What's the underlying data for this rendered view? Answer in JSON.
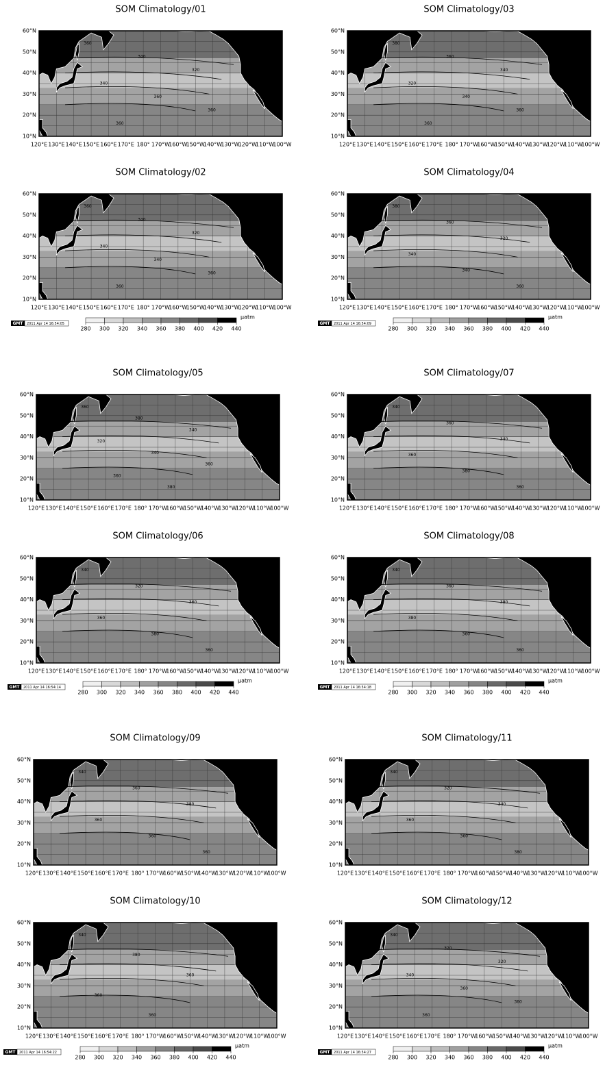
{
  "panels": [
    {
      "title": "SOM Climatology/01",
      "contour_labels": [
        360,
        340,
        320,
        340,
        360,
        360,
        360
      ]
    },
    {
      "title": "SOM Climatology/03",
      "contour_labels": [
        380,
        360,
        340,
        320,
        340,
        360,
        360
      ]
    },
    {
      "title": "SOM Climatology/02",
      "contour_labels": [
        360,
        340,
        320,
        340,
        340,
        360,
        360
      ]
    },
    {
      "title": "SOM Climatology/04",
      "contour_labels": [
        380,
        360,
        320,
        340,
        340,
        360
      ]
    },
    {
      "title": "SOM Climatology/05",
      "contour_labels": [
        360,
        380,
        340,
        320,
        340,
        360,
        360,
        380
      ]
    },
    {
      "title": "SOM Climatology/07",
      "contour_labels": [
        340,
        360,
        340,
        360,
        380,
        360
      ]
    },
    {
      "title": "SOM Climatology/06",
      "contour_labels": [
        340,
        320,
        360,
        360,
        380,
        360
      ]
    },
    {
      "title": "SOM Climatology/08",
      "contour_labels": [
        340,
        360,
        380,
        380,
        360,
        360
      ]
    },
    {
      "title": "SOM Climatology/09",
      "contour_labels": [
        340,
        360,
        380,
        360,
        360,
        360
      ]
    },
    {
      "title": "SOM Climatology/11",
      "contour_labels": [
        340,
        320,
        340,
        360,
        360,
        380
      ]
    },
    {
      "title": "SOM Climatology/10",
      "contour_labels": [
        340,
        380,
        360,
        360,
        360
      ]
    },
    {
      "title": "SOM Climatology/12",
      "contour_labels": [
        340,
        320,
        320,
        340,
        360,
        360,
        360
      ]
    }
  ],
  "lat_ticks": [
    {
      "value": 10,
      "label": "10°N"
    },
    {
      "value": 20,
      "label": "20°N"
    },
    {
      "value": 30,
      "label": "30°N"
    },
    {
      "value": 40,
      "label": "40°N"
    },
    {
      "value": 50,
      "label": "50°N"
    },
    {
      "value": 60,
      "label": "60°N"
    }
  ],
  "lon_ticks": [
    {
      "value": 120,
      "label": "120°E"
    },
    {
      "value": 130,
      "label": "130°E"
    },
    {
      "value": 140,
      "label": "140°E"
    },
    {
      "value": 150,
      "label": "150°E"
    },
    {
      "value": 160,
      "label": "160°E"
    },
    {
      "value": 170,
      "label": "170°E"
    },
    {
      "value": 180,
      "label": "180°"
    },
    {
      "value": 190,
      "label": "170°W"
    },
    {
      "value": 200,
      "label": "160°W"
    },
    {
      "value": 210,
      "label": "150°W"
    },
    {
      "value": 220,
      "label": "140°W"
    },
    {
      "value": 230,
      "label": "130°W"
    },
    {
      "value": 240,
      "label": "120°W"
    },
    {
      "value": 250,
      "label": "110°W"
    },
    {
      "value": 260,
      "label": "100°W"
    }
  ],
  "colorbar": {
    "ticks": [
      280,
      300,
      320,
      340,
      360,
      380,
      400,
      420,
      440
    ],
    "colors": [
      "#f0f0f0",
      "#d8d8d8",
      "#bdbdbd",
      "#a0a0a0",
      "#858585",
      "#686868",
      "#4a4a4a",
      "#000000"
    ],
    "unit": "µatm",
    "logo": "GMT"
  },
  "timestamps": [
    "2011 Apr 14 16:54:05",
    "2011 Apr 14 16:54:09",
    "2011 Apr 14 16:54:14",
    "2011 Apr 14 16:54:18",
    "2011 Apr 14 16:54:22",
    "2011 Apr 14 16:54:27"
  ]
}
